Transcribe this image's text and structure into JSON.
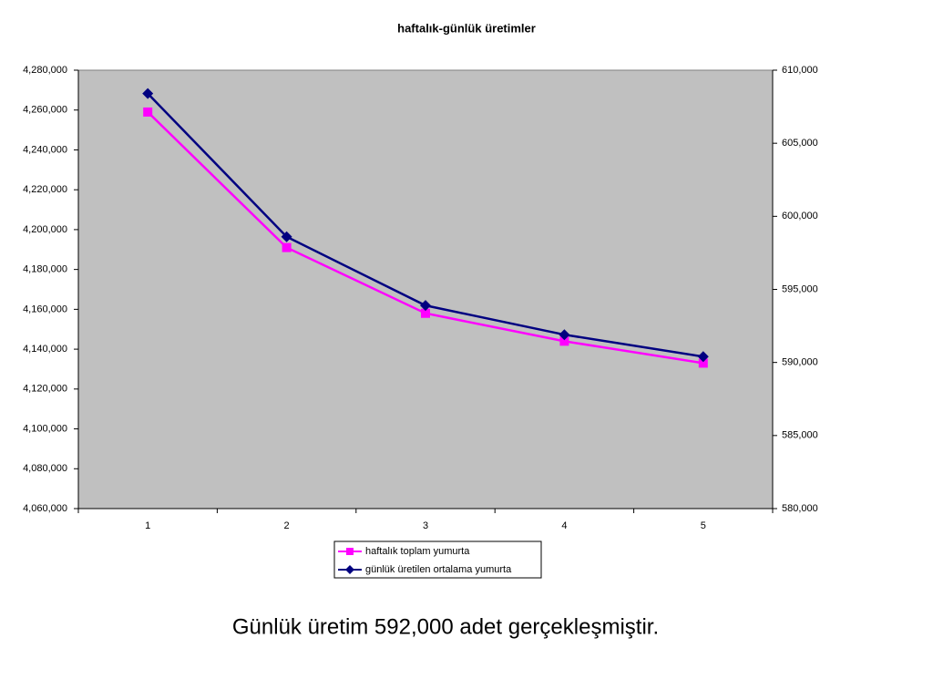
{
  "chart_data": {
    "type": "line",
    "title": "haftalık-günlük üretimler",
    "categories": [
      "1",
      "2",
      "3",
      "4",
      "5"
    ],
    "series": [
      {
        "name": "haftalık toplam yumurta",
        "color": "#ff00ff",
        "marker": "square",
        "values": [
          4259000,
          4191000,
          4158000,
          4144000,
          4133000
        ]
      },
      {
        "name": "günlük üretilen ortalama yumurta",
        "color": "#000080",
        "marker": "diamond",
        "axis": "y2",
        "values": [
          608400,
          598600,
          593900,
          591900,
          590400
        ]
      }
    ],
    "ylim": [
      4060000,
      4280000
    ],
    "yticks": [
      {
        "value": 4060000,
        "label": "4,060,000"
      },
      {
        "value": 4080000,
        "label": "4,080,000"
      },
      {
        "value": 4100000,
        "label": "4,100,000"
      },
      {
        "value": 4120000,
        "label": "4,120,000"
      },
      {
        "value": 4140000,
        "label": "4,140,000"
      },
      {
        "value": 4160000,
        "label": "4,160,000"
      },
      {
        "value": 4180000,
        "label": "4,180,000"
      },
      {
        "value": 4200000,
        "label": "4,200,000"
      },
      {
        "value": 4220000,
        "label": "4,220,000"
      },
      {
        "value": 4240000,
        "label": "4,240,000"
      },
      {
        "value": 4260000,
        "label": "4,260,000"
      },
      {
        "value": 4280000,
        "label": "4,280,000"
      }
    ],
    "y2lim": [
      580000,
      610000
    ],
    "y2ticks": [
      {
        "value": 580000,
        "label": "580,000"
      },
      {
        "value": 585000,
        "label": "585,000"
      },
      {
        "value": 590000,
        "label": "590,000"
      },
      {
        "value": 595000,
        "label": "595,000"
      },
      {
        "value": 600000,
        "label": "600,000"
      },
      {
        "value": 605000,
        "label": "605,000"
      },
      {
        "value": 610000,
        "label": "610,000"
      }
    ],
    "grid": false,
    "plot_background": "#c0c0c0",
    "legend": "bottom"
  },
  "caption": "Günlük üretim 592,000 adet gerçekleşmiştir."
}
